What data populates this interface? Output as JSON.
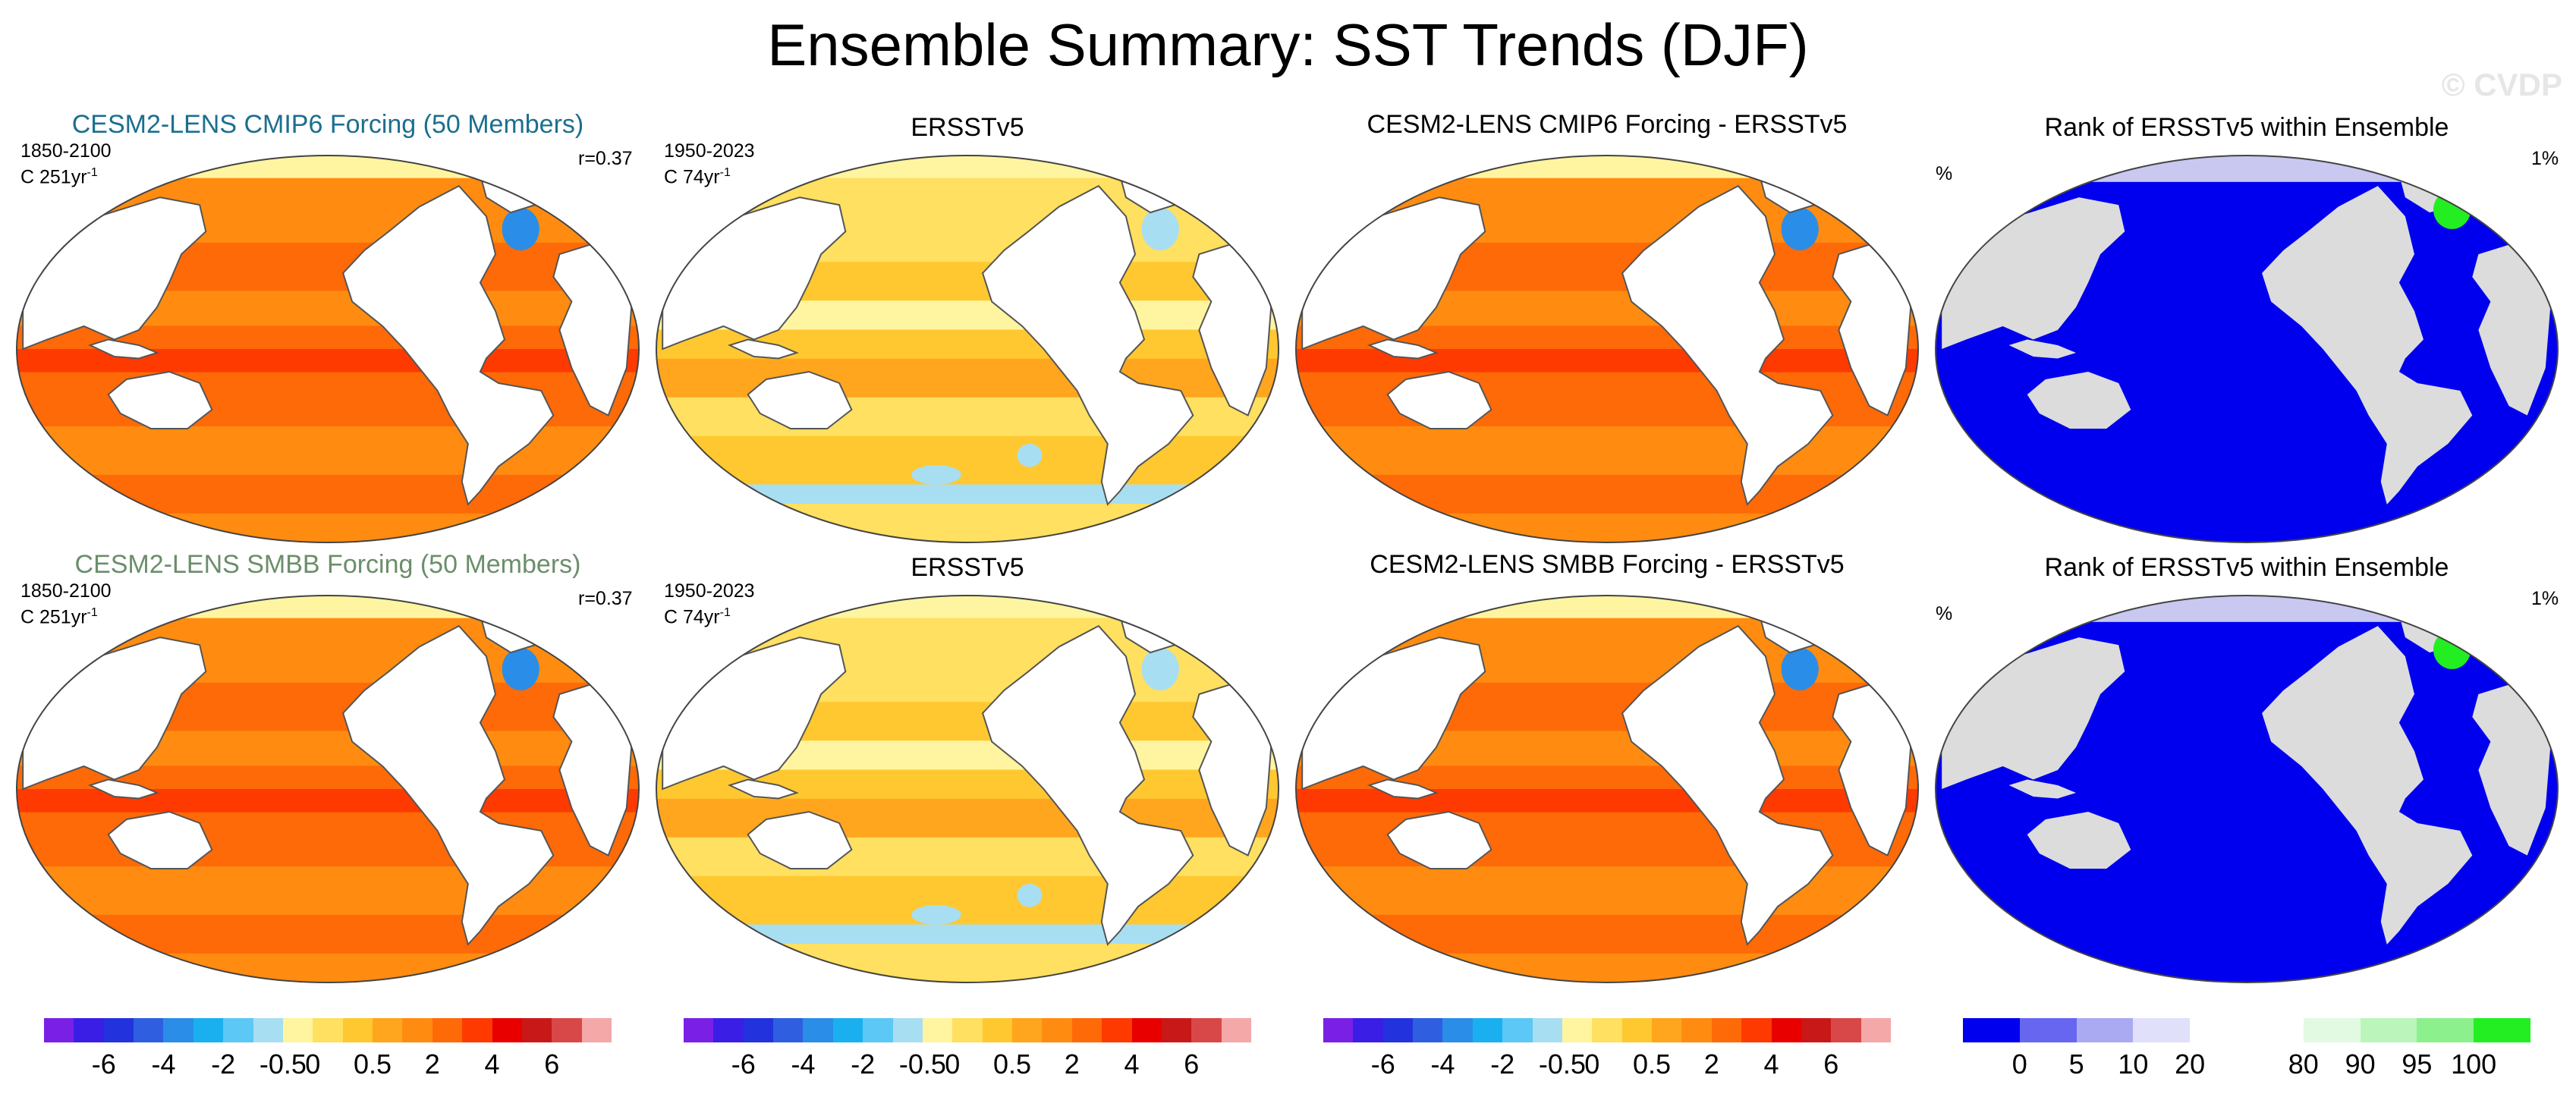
{
  "title": "Ensemble Summary: SST Trends (DJF)",
  "watermark": "© CVDP",
  "rows": [
    {
      "ensemble": {
        "title": "CESM2-LENS CMIP6 Forcing (50 Members)",
        "title_color": "#1c6f8e",
        "period": "1850-2100",
        "units": "C 251yr",
        "units_exp": "-1",
        "corr": "r=0.37"
      },
      "obs": {
        "title": "ERSSTv5",
        "period": "1950-2023",
        "units": "C 74yr",
        "units_exp": "-1"
      },
      "diff": {
        "title": "CESM2-LENS CMIP6 Forcing - ERSSTv5"
      },
      "rank": {
        "title": "Rank of ERSSTv5 within Ensemble",
        "left": "%",
        "right": "1%"
      }
    },
    {
      "ensemble": {
        "title": "CESM2-LENS SMBB Forcing (50 Members)",
        "title_color": "#6b8e6b",
        "period": "1850-2100",
        "units": "C 251yr",
        "units_exp": "-1",
        "corr": "r=0.37"
      },
      "obs": {
        "title": "ERSSTv5",
        "period": "1950-2023",
        "units": "C 74yr",
        "units_exp": "-1"
      },
      "diff": {
        "title": "CESM2-LENS SMBB Forcing - ERSSTv5"
      },
      "rank": {
        "title": "Rank of ERSSTv5 within Ensemble",
        "left": "%",
        "right": "1%"
      }
    }
  ],
  "trend_colorbar": {
    "colors": [
      "#7a1fe6",
      "#3a1ee6",
      "#2233dd",
      "#2f5fe0",
      "#2a8de8",
      "#1ab0f0",
      "#5cc8f5",
      "#a8def2",
      "#fff5a0",
      "#ffe060",
      "#ffc830",
      "#ffa61e",
      "#ff8c10",
      "#ff6a08",
      "#ff3a00",
      "#e80000",
      "#c81818",
      "#d84848",
      "#f5a8a8"
    ],
    "labels": [
      "-6",
      "-4",
      "-2",
      "-0.5",
      "0",
      "0.5",
      "2",
      "4",
      "6"
    ]
  },
  "rank_colorbar": {
    "colors": [
      "#0000ee",
      "#6666f0",
      "#aaaaf2",
      "#e0e0fa",
      "#ffffff",
      "#ffffff",
      "#e2fae2",
      "#bbf5bb",
      "#8cf08c",
      "#22ee22"
    ],
    "labels": [
      "0",
      "5",
      "10",
      "20",
      "80",
      "90",
      "95",
      "100"
    ]
  },
  "palette": {
    "land": "#ffffff",
    "rank_land": "#dcdcdc",
    "rank_ocean": "#0000ee",
    "coast": "#555555"
  }
}
